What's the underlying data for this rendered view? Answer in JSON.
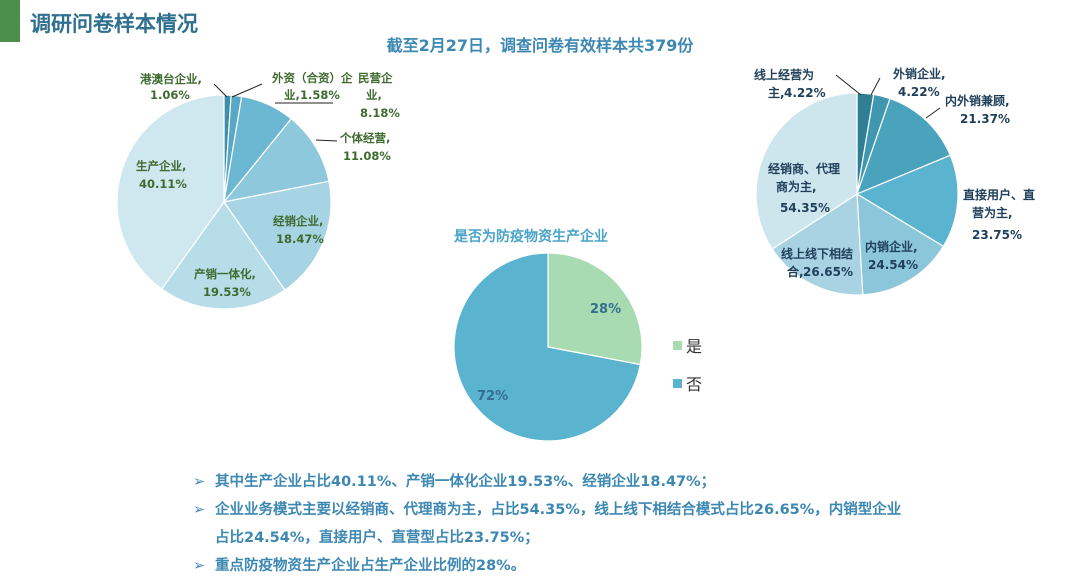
{
  "header": {
    "title": "调研问卷样本情况",
    "subtitle": "截至2月27日，调查问卷有效样本共379份"
  },
  "colors": {
    "accent": "#4a8f4a",
    "title": "#2f6f8f",
    "text_blue": "#3d88b3",
    "yes": "#a8dbb2",
    "no": "#5ab3cf"
  },
  "chart_data": [
    {
      "type": "pie",
      "slices": [
        {
          "label": "港澳台企业,",
          "value": "1.06%",
          "v": 1.06,
          "color": "#3d8ea9"
        },
        {
          "label": "外资（合资）企业,",
          "label_line1": "外资（合资）企",
          "label_line2": "业,",
          "value": "1.58%",
          "v": 1.58,
          "color": "#56a8c4"
        },
        {
          "label": "民营企业,",
          "label_line1": "民营企",
          "label_line2": "业,",
          "value": "8.18%",
          "v": 8.18,
          "color": "#6cb8d2"
        },
        {
          "label": "个体经营,",
          "value": "11.08%",
          "v": 11.08,
          "color": "#8ec8dc"
        },
        {
          "label": "经销企业,",
          "value": "18.47%",
          "v": 18.47,
          "color": "#a6d4e4"
        },
        {
          "label": "产销一体化,",
          "value": "19.53%",
          "v": 19.53,
          "color": "#b7dde9"
        },
        {
          "label": "生产企业,",
          "value": "40.11%",
          "v": 40.11,
          "color": "#cfe7ef"
        }
      ]
    },
    {
      "type": "pie",
      "title": "是否为防疫物资生产企业",
      "slices": [
        {
          "label": "是",
          "value": "28%",
          "v": 28,
          "color": "#a8dbb2"
        },
        {
          "label": "否",
          "value": "72%",
          "v": 72,
          "color": "#5ab3cf"
        }
      ],
      "legend": [
        "是",
        "否"
      ],
      "legend_position": "right"
    },
    {
      "type": "pie",
      "slices": [
        {
          "label": "线上经营为主,",
          "label_line1": "线上经营为",
          "label_line2": "主,",
          "value": "4.22%",
          "v": 4.22,
          "color": "#2f7f94"
        },
        {
          "label": "外销企业,",
          "value": "4.22%",
          "v": 4.22,
          "color": "#3f97b0"
        },
        {
          "label": "内外销兼顾,",
          "value": "21.37%",
          "v": 21.37,
          "color": "#4aa3bd"
        },
        {
          "label": "直接用户、直营为主,",
          "label_line1": "直接用户、直",
          "label_line2": "营为主,",
          "value": "23.75%",
          "v": 23.75,
          "color": "#5ab3cf"
        },
        {
          "label": "内销企业,",
          "value": "24.54%",
          "v": 24.54,
          "color": "#8cc6da"
        },
        {
          "label": "线上线下相结合,",
          "label_line1": "线上线下相结",
          "label_line2": "合,",
          "value": "26.65%",
          "v": 26.65,
          "color": "#a9d3e2"
        },
        {
          "label": "经销商、代理商为主,",
          "label_line1": "经销商、代理",
          "label_line2": "商为主,",
          "value": "54.35%",
          "v": 54.35,
          "color": "#cde6ee"
        }
      ]
    }
  ],
  "bullets": [
    {
      "arrow": "➢",
      "lines": [
        "其中生产企业占比40.11%、产销一体化企业19.53%、经销企业18.47%；"
      ]
    },
    {
      "arrow": "➢",
      "lines": [
        "企业业务模式主要以经销商、代理商为主，占比54.35%，线上线下相结合模式占比26.65%，内销型企业",
        "占比24.54%，直接用户、直营型占比23.75%；"
      ]
    },
    {
      "arrow": "➢",
      "lines": [
        "重点防疫物资生产企业占生产企业比例的28%。"
      ]
    }
  ]
}
